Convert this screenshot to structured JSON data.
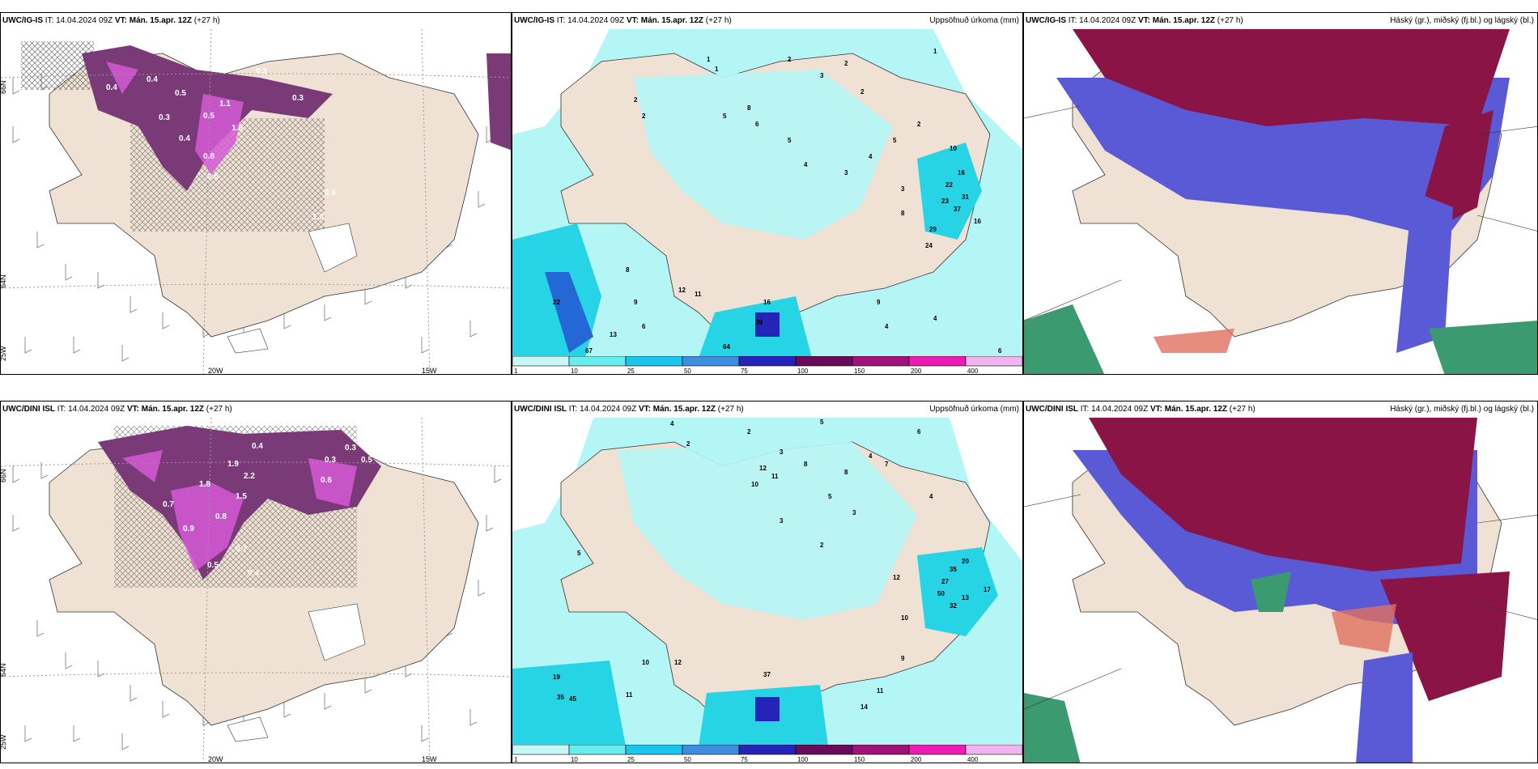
{
  "model_labels": [
    "UWC/IG-IS",
    "UWC/DINI ISL"
  ],
  "run_label": "IT:",
  "run_time": "14.04.2024 09Z",
  "valid_label": "VT:",
  "valid_time": "Mán. 15.apr. 12Z",
  "lead": "(+27 h)",
  "panel_titles": {
    "precip": "Uppsöfnuð úrkoma (mm)",
    "clouds": "Háský (gr.), miðský (fj.bl.) og lágský (bl.)"
  },
  "axis_labels": {
    "lon_20": "20W",
    "lon_15": "15W",
    "lat_66": "66N",
    "lat_64": "64N",
    "lon_25": "25W"
  },
  "colorbar": {
    "ticks": [
      "1",
      "10",
      "25",
      "50",
      "75",
      "100",
      "150",
      "200",
      "400"
    ],
    "colors": [
      "#c8f7f7",
      "#66eeee",
      "#1ac6ee",
      "#3d8ee0",
      "#2424b8",
      "#6a0a5a",
      "#a0127a",
      "#ee1ab4",
      "#f0b4ee"
    ]
  },
  "colors": {
    "land": "#efe1d3",
    "snow_purple": "#7a3a78",
    "snow_pink": "#d65ad6",
    "precip_light": "#b4f6f6",
    "precip_mid": "#27d4e6",
    "cloud_high": "#8a1446",
    "cloud_mid": "#5a5ad6",
    "cloud_low": "#3c9a70"
  },
  "precip_top_values": [
    "1",
    "1",
    "2",
    "2",
    "3",
    "2",
    "1",
    "2",
    "2",
    "5",
    "8",
    "6",
    "5",
    "4",
    "3",
    "4",
    "5",
    "3",
    "8",
    "2",
    "10",
    "16",
    "22",
    "31",
    "23",
    "37",
    "29",
    "16",
    "24",
    "12",
    "11",
    "16",
    "9",
    "8",
    "6",
    "4",
    "4",
    "6",
    "13",
    "67",
    "22",
    "39",
    "64",
    "9"
  ],
  "precip_bottom_values": [
    "4",
    "2",
    "5",
    "2",
    "3",
    "12",
    "11",
    "8",
    "10",
    "4",
    "7",
    "8",
    "5",
    "3",
    "2",
    "12",
    "35",
    "27",
    "20",
    "32",
    "50",
    "17",
    "13",
    "19",
    "35",
    "45",
    "10",
    "12",
    "11",
    "14",
    "37",
    "9",
    "10",
    "5",
    "3",
    "6",
    "4",
    "11"
  ],
  "snow_top_values": [
    "0.2",
    "0.4",
    "0.5",
    "0.3",
    "0.2",
    "0.4",
    "0.5",
    "1.1",
    "1.5",
    "0.8",
    "0.6",
    "0.4",
    "0.6",
    "0.3",
    "1.0"
  ],
  "snow_bottom_values": [
    "0.4",
    "0.3",
    "0.5",
    "0.7",
    "0.9",
    "1.8",
    "2.2",
    "1.5",
    "0.8",
    "0.5",
    "0.6",
    "1.9",
    "0.7",
    "0.4",
    "0.3"
  ]
}
